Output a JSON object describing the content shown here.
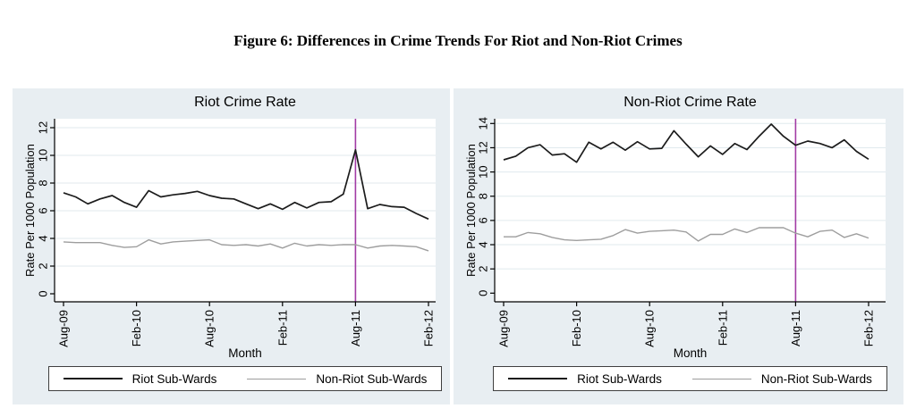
{
  "figure": {
    "title": "Figure 6: Differences in Crime Trends For Riot and Non-Riot Crimes"
  },
  "chart_data": [
    {
      "type": "line",
      "title": "Riot Crime Rate",
      "xlabel": "Month",
      "ylabel": "Rate Per 1000 Population",
      "ylim": [
        0,
        12
      ],
      "yticks": [
        0,
        2,
        4,
        6,
        8,
        10,
        12
      ],
      "grid": true,
      "legend_position": "bottom",
      "categories": [
        "Aug-09",
        "Sep-09",
        "Oct-09",
        "Nov-09",
        "Dec-09",
        "Jan-10",
        "Feb-10",
        "Mar-10",
        "Apr-10",
        "May-10",
        "Jun-10",
        "Jul-10",
        "Aug-10",
        "Sep-10",
        "Oct-10",
        "Nov-10",
        "Dec-10",
        "Jan-11",
        "Feb-11",
        "Mar-11",
        "Apr-11",
        "May-11",
        "Jun-11",
        "Jul-11",
        "Aug-11",
        "Sep-11",
        "Oct-11",
        "Nov-11",
        "Dec-11",
        "Jan-12",
        "Feb-12"
      ],
      "xtick_labels": [
        "Aug-09",
        "Feb-10",
        "Aug-10",
        "Feb-11",
        "Aug-11",
        "Feb-12"
      ],
      "xtick_indices": [
        0,
        6,
        12,
        18,
        24,
        30
      ],
      "vline": {
        "at": "Aug-11",
        "index": 24,
        "color": "#a23ba5"
      },
      "series": [
        {
          "name": "Riot Sub-Wards",
          "color": "#1c1c1c",
          "values": [
            7.3,
            7.0,
            6.5,
            6.85,
            7.1,
            6.6,
            6.25,
            7.45,
            7.0,
            7.15,
            7.25,
            7.4,
            7.1,
            6.9,
            6.85,
            6.5,
            6.15,
            6.5,
            6.1,
            6.6,
            6.2,
            6.6,
            6.65,
            7.2,
            10.4,
            6.15,
            6.45,
            6.3,
            6.25,
            5.8,
            5.4
          ]
        },
        {
          "name": "Non-Riot Sub-Wards",
          "color": "#9e9e9e",
          "values": [
            3.75,
            3.7,
            3.7,
            3.7,
            3.5,
            3.35,
            3.4,
            3.9,
            3.6,
            3.75,
            3.8,
            3.85,
            3.9,
            3.55,
            3.5,
            3.55,
            3.45,
            3.6,
            3.3,
            3.65,
            3.45,
            3.55,
            3.5,
            3.55,
            3.55,
            3.3,
            3.45,
            3.5,
            3.45,
            3.4,
            3.1
          ]
        }
      ]
    },
    {
      "type": "line",
      "title": "Non-Riot Crime Rate",
      "xlabel": "Month",
      "ylabel": "Rate Per 1000 Population",
      "ylim": [
        0,
        14
      ],
      "yticks": [
        0,
        2,
        4,
        6,
        8,
        10,
        12,
        14
      ],
      "grid": true,
      "legend_position": "bottom",
      "categories": [
        "Aug-09",
        "Sep-09",
        "Oct-09",
        "Nov-09",
        "Dec-09",
        "Jan-10",
        "Feb-10",
        "Mar-10",
        "Apr-10",
        "May-10",
        "Jun-10",
        "Jul-10",
        "Aug-10",
        "Sep-10",
        "Oct-10",
        "Nov-10",
        "Dec-10",
        "Jan-11",
        "Feb-11",
        "Mar-11",
        "Apr-11",
        "May-11",
        "Jun-11",
        "Jul-11",
        "Aug-11",
        "Sep-11",
        "Oct-11",
        "Nov-11",
        "Dec-11",
        "Jan-12",
        "Feb-12"
      ],
      "xtick_labels": [
        "Aug-09",
        "Feb-10",
        "Aug-10",
        "Feb-11",
        "Aug-11",
        "Feb-12"
      ],
      "xtick_indices": [
        0,
        6,
        12,
        18,
        24,
        30
      ],
      "vline": {
        "at": "Aug-11",
        "index": 24,
        "color": "#a23ba5"
      },
      "series": [
        {
          "name": "Riot Sub-Wards",
          "color": "#1c1c1c",
          "values": [
            11.0,
            11.3,
            12.0,
            12.25,
            11.4,
            11.5,
            10.8,
            12.45,
            11.9,
            12.45,
            11.8,
            12.5,
            11.9,
            11.95,
            13.4,
            12.3,
            11.25,
            12.15,
            11.45,
            12.35,
            11.85,
            12.95,
            13.95,
            12.95,
            12.2,
            12.55,
            12.35,
            12.0,
            12.65,
            11.7,
            11.05
          ]
        },
        {
          "name": "Non-Riot Sub-Wards",
          "color": "#9e9e9e",
          "values": [
            4.65,
            4.65,
            5.0,
            4.9,
            4.6,
            4.4,
            4.35,
            4.4,
            4.45,
            4.75,
            5.25,
            4.95,
            5.1,
            5.15,
            5.2,
            5.05,
            4.3,
            4.85,
            4.85,
            5.3,
            5.0,
            5.4,
            5.4,
            5.4,
            4.95,
            4.65,
            5.1,
            5.2,
            4.6,
            4.9,
            4.55
          ]
        }
      ]
    }
  ]
}
